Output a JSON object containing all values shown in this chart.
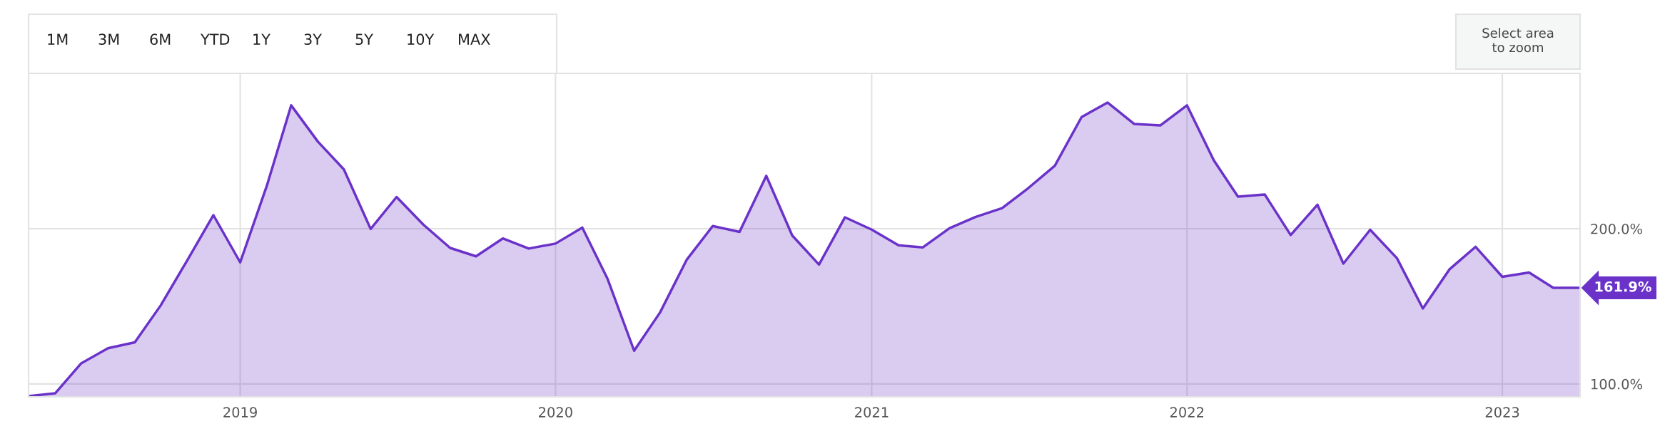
{
  "chart_data": {
    "type": "area",
    "x": [
      "2018-05-01",
      "2018-06-01",
      "2018-07-01",
      "2018-08-01",
      "2018-09-01",
      "2018-10-01",
      "2018-11-01",
      "2018-12-01",
      "2019-01-01",
      "2019-02-01",
      "2019-03-01",
      "2019-04-01",
      "2019-05-01",
      "2019-06-01",
      "2019-07-01",
      "2019-08-01",
      "2019-09-01",
      "2019-10-01",
      "2019-11-01",
      "2019-12-01",
      "2020-01-01",
      "2020-02-01",
      "2020-03-01",
      "2020-04-01",
      "2020-05-01",
      "2020-06-01",
      "2020-07-01",
      "2020-08-01",
      "2020-09-01",
      "2020-10-01",
      "2020-11-01",
      "2020-12-01",
      "2021-01-01",
      "2021-02-01",
      "2021-03-01",
      "2021-04-01",
      "2021-05-01",
      "2021-06-01",
      "2021-07-01",
      "2021-08-01",
      "2021-09-01",
      "2021-10-01",
      "2021-11-01",
      "2021-12-01",
      "2022-01-01",
      "2022-02-01",
      "2022-03-01",
      "2022-04-01",
      "2022-05-01",
      "2022-06-01",
      "2022-07-01",
      "2022-08-01",
      "2022-09-01",
      "2022-10-01",
      "2022-11-01",
      "2022-12-01",
      "2023-01-01",
      "2023-02-01",
      "2023-03-01",
      "2023-04-01"
    ],
    "series": [
      {
        "color": "#6a32c9",
        "values": [
          92.2,
          94.0,
          113.3,
          123.0,
          126.8,
          150.6,
          179.9,
          208.7,
          178.3,
          227.9,
          279.4,
          256.0,
          238.2,
          199.8,
          220.4,
          202.6,
          187.6,
          182.2,
          193.7,
          187.2,
          190.4,
          200.7,
          168.0,
          121.4,
          146.0,
          180.1,
          201.7,
          197.9,
          234.0,
          195.6,
          176.9,
          207.3,
          199.4,
          189.3,
          187.9,
          200.3,
          207.5,
          213.2,
          226.0,
          240.5,
          271.9,
          281.2,
          267.4,
          266.5,
          279.4,
          244.0,
          220.6,
          222.0,
          195.9,
          215.4,
          177.5,
          199.3,
          181.0,
          148.6,
          173.9,
          188.3,
          169.0,
          171.8,
          161.9,
          161.9
        ],
        "value_labels": [
          null,
          null,
          null,
          null,
          null,
          null,
          null,
          null,
          null,
          null,
          null,
          null,
          null,
          null,
          null,
          null,
          null,
          null,
          null,
          null,
          null,
          null,
          null,
          null,
          null,
          null,
          null,
          null,
          null,
          null,
          null,
          null,
          null,
          null,
          null,
          null,
          null,
          null,
          null,
          null,
          null,
          null,
          null,
          null,
          null,
          null,
          null,
          null,
          null,
          null,
          null,
          null,
          null,
          null,
          null,
          null,
          null,
          null,
          null,
          "161.9%"
        ]
      }
    ],
    "xlim": [
      "2018-05-01",
      "2023-04-01"
    ],
    "xticks": [
      {
        "value": "2019-01-01",
        "label": "2019"
      },
      {
        "value": "2020-01-01",
        "label": "2020"
      },
      {
        "value": "2021-01-01",
        "label": "2021"
      },
      {
        "value": "2022-01-01",
        "label": "2022"
      },
      {
        "value": "2023-01-01",
        "label": "2023"
      }
    ],
    "ylim": [
      91.7,
      300
    ],
    "yticks": [
      {
        "value": 100,
        "label": "100.0%"
      },
      {
        "value": 200,
        "label": "200.0%"
      },
      {
        "value": 300,
        "label": null
      }
    ],
    "grid": true,
    "legend": false,
    "annotations": [
      "1M",
      "3M",
      "6M",
      "YTD",
      "1Y",
      "3Y",
      "5Y",
      "10Y",
      "MAX",
      "Select area\nto zoom"
    ]
  }
}
